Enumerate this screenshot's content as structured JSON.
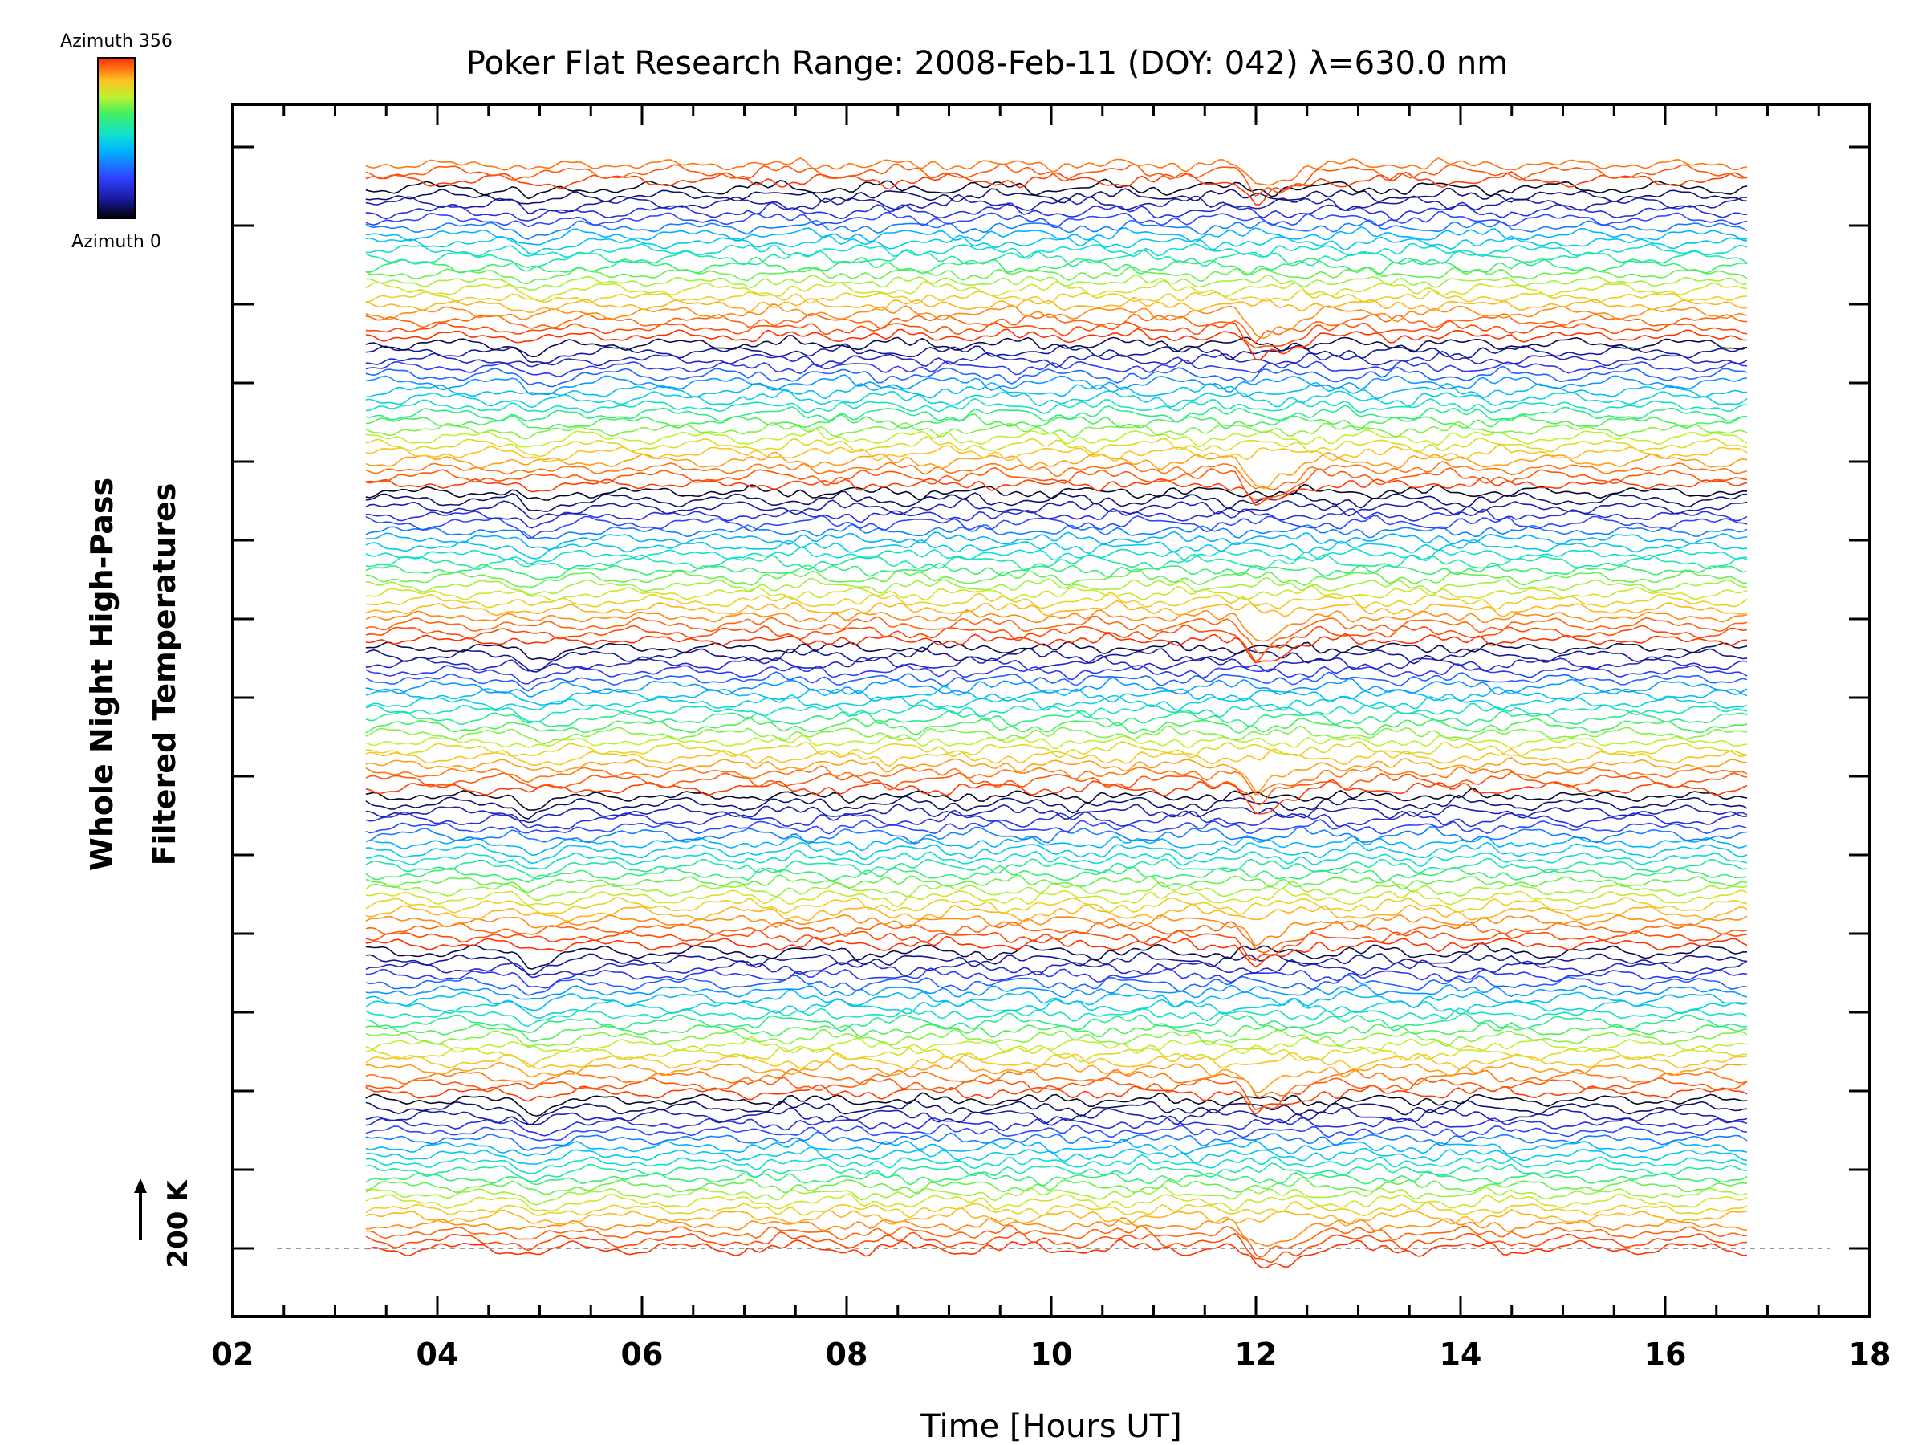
{
  "chart_data": {
    "type": "line",
    "title": "Poker Flat Research Range: 2008-Feb-11 (DOY: 042) λ=630.0 nm",
    "xlabel": "Time [Hours UT]",
    "ylabel_line1": "Whole Night High-Pass",
    "ylabel_line2": "Filtered Temperatures",
    "xlim": [
      2,
      18
    ],
    "x_tick_labels": [
      "02",
      "04",
      "06",
      "08",
      "10",
      "12",
      "14",
      "16",
      "18"
    ],
    "x_data_range": [
      3.3,
      16.8
    ],
    "baseline_label": "200 K",
    "baseline_dashed": true,
    "grid": false,
    "legend": {
      "type": "colorbar",
      "placement": "top-left",
      "top_label": "Azimuth 356",
      "bottom_label": "Azimuth 0",
      "colormap": "rainbow"
    },
    "series_description_count": 140,
    "features": [
      {
        "x": 4.9,
        "note": "sharp disturbance visible in most traces"
      },
      {
        "x": 12.0,
        "note": "sharp drop visible in red/orange traces"
      }
    ],
    "colors": {
      "axis": "#000000",
      "baseline": "#999999",
      "colormap_stops": [
        "#000000",
        "#1a1aa0",
        "#3040ff",
        "#00b4ff",
        "#10e0d0",
        "#40f060",
        "#c0f030",
        "#ffc020",
        "#ff6a10",
        "#ff3000"
      ]
    }
  }
}
